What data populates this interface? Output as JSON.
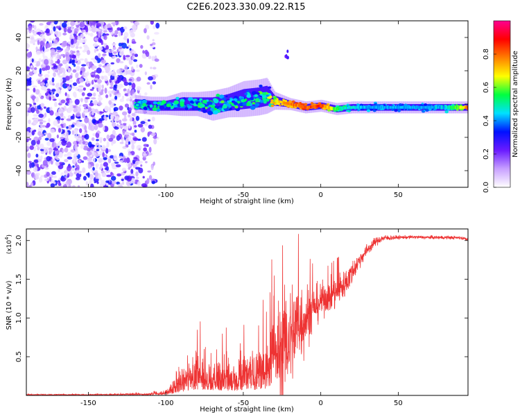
{
  "page_title": "C2E6.2023.330.09.22.R15",
  "chart_data": [
    {
      "type": "heatmap",
      "title": "C2E6.2023.330.09.22.R15",
      "xlabel": "Height of straight line (km)",
      "ylabel": "Frequency (Hz)",
      "xlim": [
        -190,
        95
      ],
      "ylim": [
        -50,
        50
      ],
      "xticks": [
        -150,
        -100,
        -50,
        0,
        50
      ],
      "xtick_labels": [
        "-150",
        "-100",
        "-50",
        "0",
        "50"
      ],
      "yticks": [
        -40,
        -20,
        0,
        20,
        40
      ],
      "ytick_labels": [
        "-40",
        "-20",
        "0",
        "20",
        "40"
      ],
      "colorbar": {
        "label": "Normalized spectral amplitude",
        "range": [
          0,
          1
        ],
        "ticks": [
          0.0,
          0.2,
          0.4,
          0.6,
          0.8
        ],
        "tick_labels": [
          "0.0",
          "0.2",
          "0.4",
          "0.6",
          "0.8"
        ],
        "colors": [
          "#ffffff",
          "#c8a0ff",
          "#6a1bff",
          "#0010ff",
          "#00e0ff",
          "#00ff40",
          "#ffff00",
          "#ff8000",
          "#ff0000",
          "#ff0090"
        ]
      },
      "noise_region": {
        "x": [
          -190,
          -105
        ],
        "y": [
          -50,
          50
        ]
      },
      "signal_band": {
        "x": [
          -120,
          -110,
          -100,
          -90,
          -80,
          -70,
          -60,
          -50,
          -40,
          -35,
          -30,
          -20,
          -10,
          0,
          10,
          20,
          30,
          40,
          50,
          60,
          70,
          80,
          90,
          95
        ],
        "center_hz": [
          0,
          -1,
          -1,
          0,
          0,
          -1,
          1,
          3,
          4,
          5,
          2,
          0,
          -2,
          -1,
          -3,
          -2,
          -2,
          -2,
          -2,
          -2,
          -2,
          -2,
          -2,
          -2
        ],
        "half_width_hz": [
          3,
          3,
          3,
          4,
          4,
          5,
          5,
          6,
          6,
          6,
          3,
          2,
          2,
          2,
          2,
          2,
          2,
          2,
          2,
          2,
          2,
          2,
          2,
          2
        ],
        "peak_amplitude": [
          0.45,
          0.45,
          0.45,
          0.45,
          0.5,
          0.5,
          0.5,
          0.5,
          0.5,
          0.55,
          0.7,
          0.85,
          0.85,
          0.9,
          0.6,
          0.5,
          0.45,
          0.45,
          0.45,
          0.45,
          0.45,
          0.5,
          0.7,
          0.9
        ]
      },
      "isolated_feature": {
        "x": -22,
        "y": 30
      }
    },
    {
      "type": "line",
      "xlabel": "Height of straight line (km)",
      "ylabel": "SNR (10 * v/v)",
      "y_multiplier_label": "(x10",
      "y_multiplier_exp": "4",
      "y_multiplier_close": ")",
      "xlim": [
        -190,
        95
      ],
      "ylim": [
        0,
        21500
      ],
      "xticks": [
        -150,
        -100,
        -50,
        0,
        50
      ],
      "xtick_labels": [
        "-150",
        "-100",
        "-50",
        "0",
        "50"
      ],
      "yticks": [
        5000,
        10000,
        15000,
        20000
      ],
      "ytick_labels": [
        "0.5",
        "1.0",
        "1.5",
        "2.0"
      ],
      "color": "#ee3333",
      "series": [
        {
          "x": [
            -190,
            -170,
            -150,
            -130,
            -110,
            -100,
            -95,
            -90,
            -85,
            -80,
            -75,
            -70,
            -65,
            -60,
            -55,
            -50,
            -45,
            -40,
            -35,
            -30,
            -25,
            -20,
            -15,
            -10,
            -5,
            0,
            5,
            10,
            15,
            20,
            25,
            30,
            35,
            40,
            50,
            60,
            70,
            80,
            90,
            95
          ],
          "y": [
            200,
            200,
            200,
            250,
            300,
            500,
            1000,
            1800,
            2600,
            3000,
            2700,
            2400,
            2400,
            2300,
            2300,
            2500,
            2700,
            3000,
            3500,
            4500,
            6000,
            7500,
            9000,
            10000,
            11200,
            12200,
            12800,
            13300,
            14300,
            15800,
            17500,
            18800,
            19800,
            20300,
            20400,
            20450,
            20400,
            20400,
            20350,
            20200
          ],
          "noise": [
            50,
            50,
            60,
            80,
            120,
            300,
            800,
            1500,
            2100,
            2400,
            2200,
            2000,
            2000,
            2000,
            2000,
            2200,
            2400,
            2800,
            3600,
            5000,
            6000,
            6500,
            5500,
            4000,
            2600,
            2000,
            1800,
            2000,
            1800,
            1400,
            900,
            700,
            500,
            400,
            200,
            200,
            200,
            200,
            200,
            200
          ]
        }
      ]
    }
  ]
}
